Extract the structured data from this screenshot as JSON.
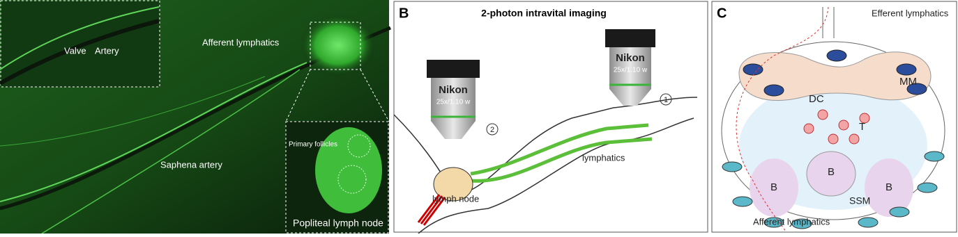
{
  "panel_a": {
    "inset_labels": {
      "valve": "Valve",
      "artery": "Artery"
    },
    "afferent": "Afferent lymphatics",
    "saphena": "Saphena artery",
    "node_inset": {
      "follicles": "Primary follicles",
      "caption": "Popliteal lymph node"
    }
  },
  "panel_b": {
    "letter": "B",
    "title": "2-photon intravital imaging",
    "microscopes": [
      {
        "brand": "Nikon",
        "lens": "25x/1.10 w",
        "number": "1"
      },
      {
        "brand": "Nikon",
        "lens": "25x/1.10 w",
        "number": "2"
      }
    ],
    "lymphatics": "lymphatics",
    "lymph_node": "lymph node"
  },
  "panel_c": {
    "letter": "C",
    "efferent": "Efferent lymphatics",
    "afferent": "Afferent lymphatics",
    "cells": {
      "mm": "MM",
      "dc": "DC",
      "t": "T",
      "b_left": "B",
      "b_right": "B",
      "b_center": "B",
      "ssm": "SSM"
    }
  }
}
